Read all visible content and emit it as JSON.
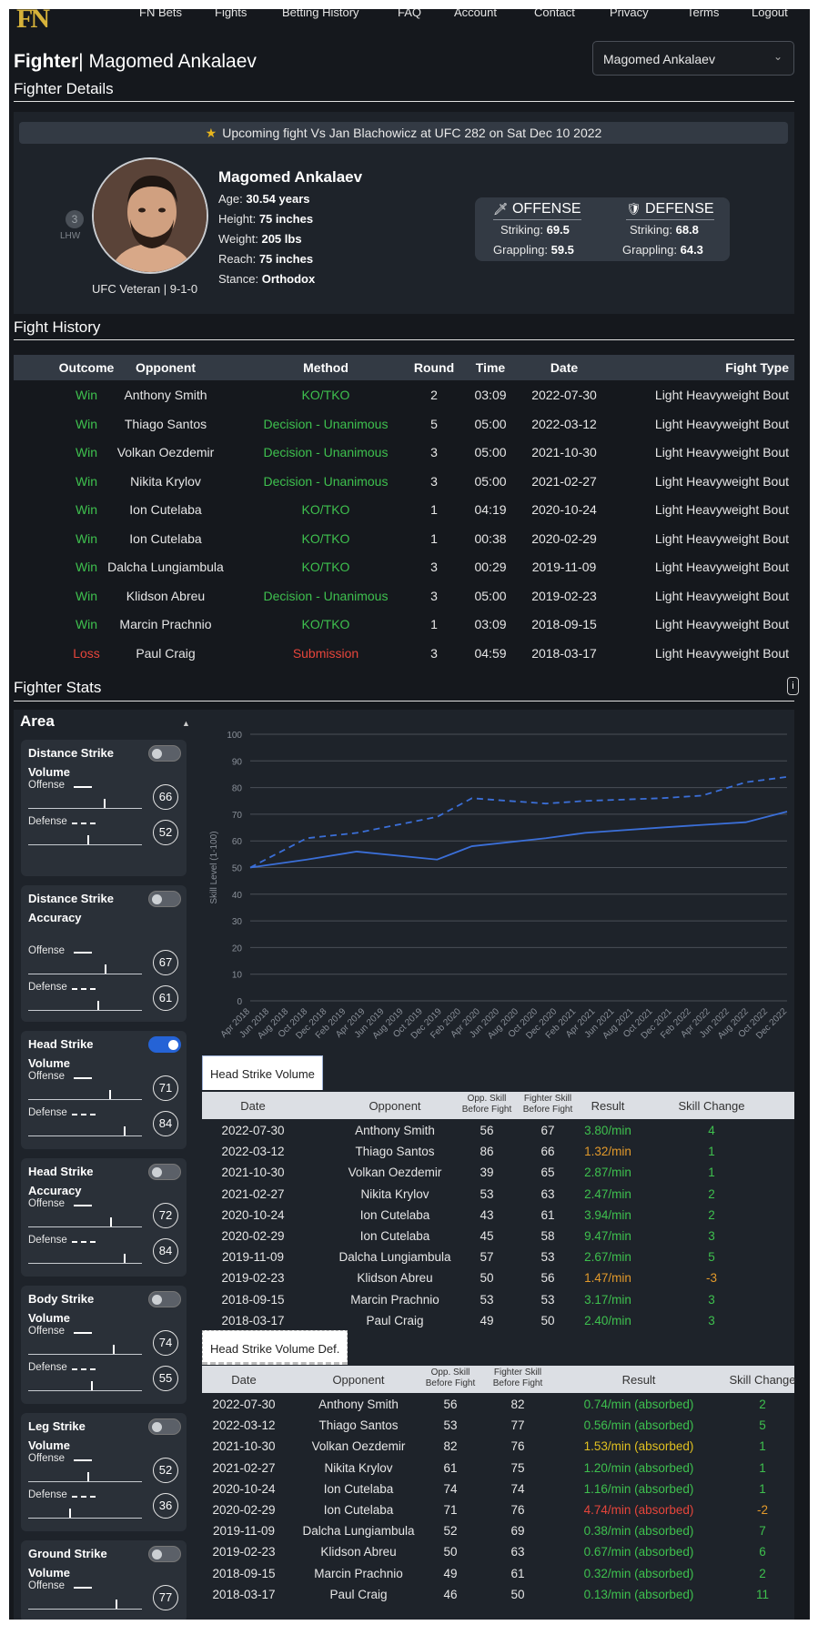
{
  "nav": {
    "logo": "FN",
    "items": [
      "FN Bets",
      "Fights",
      "Betting History",
      "FAQ",
      "Account",
      "Contact",
      "Privacy",
      "Terms",
      "Logout"
    ]
  },
  "page": {
    "title_bold": "Fighter",
    "title_rest": "| Magomed Ankalaev",
    "select_value": "Magomed Ankalaev",
    "section_details": "Fighter Details",
    "section_history": "Fight History",
    "section_stats": "Fighter Stats"
  },
  "details": {
    "upcoming": "Upcoming fight Vs Jan Blachowicz at UFC 282 on Sat Dec 10 2022",
    "rank_number": "3",
    "rank_label": "LHW",
    "veteran": "UFC Veteran | 9-1-0",
    "name": "Magomed Ankalaev",
    "age_label": "Age:",
    "age": "30.54 years",
    "height_label": "Height:",
    "height": "75 inches",
    "weight_label": "Weight:",
    "weight": "205 lbs",
    "reach_label": "Reach:",
    "reach": "75 inches",
    "stance_label": "Stance:",
    "stance": "Orthodox",
    "offense": {
      "title": "OFFENSE",
      "striking_label": "Striking:",
      "striking": "69.5",
      "grappling_label": "Grappling:",
      "grappling": "59.5"
    },
    "defense": {
      "title": "DEFENSE",
      "striking_label": "Striking:",
      "striking": "68.8",
      "grappling_label": "Grappling:",
      "grappling": "64.3"
    }
  },
  "history": {
    "headers": [
      "Outcome",
      "Opponent",
      "Method",
      "Round",
      "Time",
      "Date",
      "Fight Type"
    ],
    "rows": [
      [
        "Win",
        "Anthony Smith",
        "KO/TKO",
        "2",
        "03:09",
        "2022-07-30",
        "Light Heavyweight Bout"
      ],
      [
        "Win",
        "Thiago Santos",
        "Decision - Unanimous",
        "5",
        "05:00",
        "2022-03-12",
        "Light Heavyweight Bout"
      ],
      [
        "Win",
        "Volkan Oezdemir",
        "Decision - Unanimous",
        "3",
        "05:00",
        "2021-10-30",
        "Light Heavyweight Bout"
      ],
      [
        "Win",
        "Nikita Krylov",
        "Decision - Unanimous",
        "3",
        "05:00",
        "2021-02-27",
        "Light Heavyweight Bout"
      ],
      [
        "Win",
        "Ion Cutelaba",
        "KO/TKO",
        "1",
        "04:19",
        "2020-10-24",
        "Light Heavyweight Bout"
      ],
      [
        "Win",
        "Ion Cutelaba",
        "KO/TKO",
        "1",
        "00:38",
        "2020-02-29",
        "Light Heavyweight Bout"
      ],
      [
        "Win",
        "Dalcha Lungiambula",
        "KO/TKO",
        "3",
        "00:29",
        "2019-11-09",
        "Light Heavyweight Bout"
      ],
      [
        "Win",
        "Klidson Abreu",
        "Decision - Unanimous",
        "3",
        "05:00",
        "2019-02-23",
        "Light Heavyweight Bout"
      ],
      [
        "Win",
        "Marcin Prachnio",
        "KO/TKO",
        "1",
        "03:09",
        "2018-09-15",
        "Light Heavyweight Bout"
      ],
      [
        "Loss",
        "Paul Craig",
        "Submission",
        "3",
        "04:59",
        "2018-03-17",
        "Light Heavyweight Bout"
      ]
    ]
  },
  "stats": {
    "info": "i",
    "area_title": "Area",
    "offense_label": "Offense",
    "defense_label": "Defense",
    "cards": [
      {
        "title": "Distance Strike Volume",
        "on": false,
        "offense": 66,
        "defense": 52
      },
      {
        "title": "Distance Strike Accuracy",
        "on": false,
        "offense": 67,
        "defense": 61
      },
      {
        "title": "Head Strike Volume",
        "on": true,
        "offense": 71,
        "defense": 84
      },
      {
        "title": "Head Strike Accuracy",
        "on": false,
        "offense": 72,
        "defense": 84
      },
      {
        "title": "Body Strike Volume",
        "on": false,
        "offense": 74,
        "defense": 55
      },
      {
        "title": "Leg Strike Volume",
        "on": false,
        "offense": 52,
        "defense": 36
      },
      {
        "title": "Ground Strike Volume",
        "on": false,
        "offense": 77,
        "defense": null
      }
    ]
  },
  "chart_data": {
    "type": "line",
    "ylabel": "Skill Level (1-100)",
    "ylim": [
      0,
      100
    ],
    "yticks": [
      0,
      10,
      20,
      30,
      40,
      50,
      60,
      70,
      80,
      90,
      100
    ],
    "grid": true,
    "x": [
      "Apr 2018",
      "Jun 2018",
      "Aug 2018",
      "Oct 2018",
      "Dec 2018",
      "Feb 2019",
      "Apr 2019",
      "Jun 2019",
      "Aug 2019",
      "Oct 2019",
      "Dec 2019",
      "Feb 2020",
      "Apr 2020",
      "Jun 2020",
      "Aug 2020",
      "Oct 2020",
      "Dec 2020",
      "Feb 2021",
      "Apr 2021",
      "Jun 2021",
      "Aug 2021",
      "Oct 2021",
      "Dec 2021",
      "Feb 2022",
      "Apr 2022",
      "Jun 2022",
      "Aug 2022",
      "Oct 2022",
      "Dec 2022"
    ],
    "series": [
      {
        "style": "solid",
        "color": "#3b6fd8",
        "points": [
          [
            "2018-03-17",
            50
          ],
          [
            "2018-09-15",
            53
          ],
          [
            "2019-02-23",
            56
          ],
          [
            "2019-11-09",
            53
          ],
          [
            "2020-02-29",
            58
          ],
          [
            "2020-10-24",
            61
          ],
          [
            "2021-02-27",
            63
          ],
          [
            "2021-10-30",
            65
          ],
          [
            "2022-03-12",
            66
          ],
          [
            "2022-07-30",
            67
          ],
          [
            "2022-12-10",
            71
          ]
        ]
      },
      {
        "style": "dashed",
        "color": "#3b6fd8",
        "points": [
          [
            "2018-03-17",
            50
          ],
          [
            "2018-09-15",
            61
          ],
          [
            "2019-02-23",
            63
          ],
          [
            "2019-11-09",
            69
          ],
          [
            "2020-02-29",
            76
          ],
          [
            "2020-10-24",
            74
          ],
          [
            "2021-02-27",
            75
          ],
          [
            "2021-10-30",
            76
          ],
          [
            "2022-03-12",
            77
          ],
          [
            "2022-07-30",
            82
          ],
          [
            "2022-12-10",
            84
          ]
        ]
      }
    ]
  },
  "hsv": {
    "tab": "Head Strike Volume",
    "headers": {
      "date": "Date",
      "opponent": "Opponent",
      "opp_skill": "Opp. Skill Before Fight",
      "fighter_skill": "Fighter Skill Before Fight",
      "result": "Result",
      "change": "Skill Change"
    },
    "rows": [
      {
        "date": "2022-07-30",
        "opp": "Anthony Smith",
        "os": "56",
        "fs": "67",
        "res": "3.80/min",
        "rc": "green",
        "chg": "4",
        "cc": "green"
      },
      {
        "date": "2022-03-12",
        "opp": "Thiago Santos",
        "os": "86",
        "fs": "66",
        "res": "1.32/min",
        "rc": "orange",
        "chg": "1",
        "cc": "green"
      },
      {
        "date": "2021-10-30",
        "opp": "Volkan Oezdemir",
        "os": "39",
        "fs": "65",
        "res": "2.87/min",
        "rc": "green",
        "chg": "1",
        "cc": "green"
      },
      {
        "date": "2021-02-27",
        "opp": "Nikita Krylov",
        "os": "53",
        "fs": "63",
        "res": "2.47/min",
        "rc": "green",
        "chg": "2",
        "cc": "green"
      },
      {
        "date": "2020-10-24",
        "opp": "Ion Cutelaba",
        "os": "43",
        "fs": "61",
        "res": "3.94/min",
        "rc": "green",
        "chg": "2",
        "cc": "green"
      },
      {
        "date": "2020-02-29",
        "opp": "Ion Cutelaba",
        "os": "45",
        "fs": "58",
        "res": "9.47/min",
        "rc": "green",
        "chg": "3",
        "cc": "green"
      },
      {
        "date": "2019-11-09",
        "opp": "Dalcha Lungiambula",
        "os": "57",
        "fs": "53",
        "res": "2.67/min",
        "rc": "green",
        "chg": "5",
        "cc": "green"
      },
      {
        "date": "2019-02-23",
        "opp": "Klidson Abreu",
        "os": "50",
        "fs": "56",
        "res": "1.47/min",
        "rc": "orange",
        "chg": "-3",
        "cc": "orange"
      },
      {
        "date": "2018-09-15",
        "opp": "Marcin Prachnio",
        "os": "53",
        "fs": "53",
        "res": "3.17/min",
        "rc": "green",
        "chg": "3",
        "cc": "green"
      },
      {
        "date": "2018-03-17",
        "opp": "Paul Craig",
        "os": "49",
        "fs": "50",
        "res": "2.40/min",
        "rc": "green",
        "chg": "3",
        "cc": "green"
      }
    ]
  },
  "hsvd": {
    "tab": "Head Strike Volume Def.",
    "headers": {
      "date": "Date",
      "opponent": "Opponent",
      "opp_skill": "Opp. Skill Before Fight",
      "fighter_skill": "Fighter Skill Before Fight",
      "result": "Result",
      "change": "Skill Change"
    },
    "rows": [
      {
        "date": "2022-07-30",
        "opp": "Anthony Smith",
        "os": "56",
        "fs": "82",
        "res": "0.74/min (absorbed)",
        "rc": "green",
        "chg": "2",
        "cc": "green"
      },
      {
        "date": "2022-03-12",
        "opp": "Thiago Santos",
        "os": "53",
        "fs": "77",
        "res": "0.56/min (absorbed)",
        "rc": "green",
        "chg": "5",
        "cc": "green"
      },
      {
        "date": "2021-10-30",
        "opp": "Volkan Oezdemir",
        "os": "82",
        "fs": "76",
        "res": "1.53/min (absorbed)",
        "rc": "yellow",
        "chg": "1",
        "cc": "green"
      },
      {
        "date": "2021-02-27",
        "opp": "Nikita Krylov",
        "os": "61",
        "fs": "75",
        "res": "1.20/min (absorbed)",
        "rc": "green",
        "chg": "1",
        "cc": "green"
      },
      {
        "date": "2020-10-24",
        "opp": "Ion Cutelaba",
        "os": "74",
        "fs": "74",
        "res": "1.16/min (absorbed)",
        "rc": "green",
        "chg": "1",
        "cc": "green"
      },
      {
        "date": "2020-02-29",
        "opp": "Ion Cutelaba",
        "os": "71",
        "fs": "76",
        "res": "4.74/min (absorbed)",
        "rc": "red",
        "chg": "-2",
        "cc": "orange"
      },
      {
        "date": "2019-11-09",
        "opp": "Dalcha Lungiambula",
        "os": "52",
        "fs": "69",
        "res": "0.38/min (absorbed)",
        "rc": "green",
        "chg": "7",
        "cc": "green"
      },
      {
        "date": "2019-02-23",
        "opp": "Klidson Abreu",
        "os": "50",
        "fs": "63",
        "res": "0.67/min (absorbed)",
        "rc": "green",
        "chg": "6",
        "cc": "green"
      },
      {
        "date": "2018-09-15",
        "opp": "Marcin Prachnio",
        "os": "49",
        "fs": "61",
        "res": "0.32/min (absorbed)",
        "rc": "green",
        "chg": "2",
        "cc": "green"
      },
      {
        "date": "2018-03-17",
        "opp": "Paul Craig",
        "os": "46",
        "fs": "50",
        "res": "0.13/min (absorbed)",
        "rc": "green",
        "chg": "11",
        "cc": "green"
      }
    ]
  }
}
